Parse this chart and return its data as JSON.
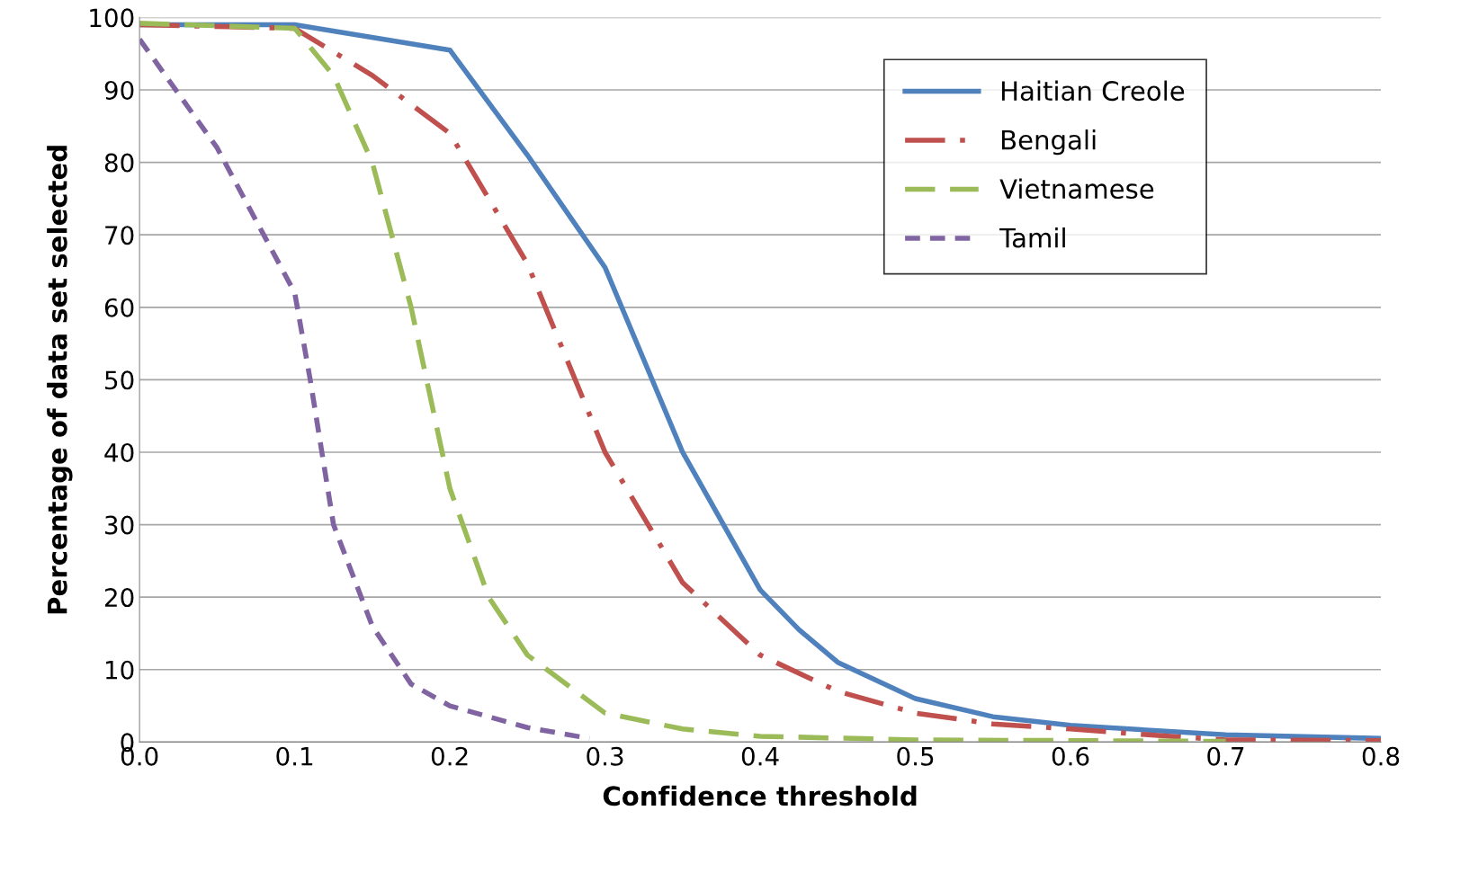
{
  "chart_data": {
    "type": "line",
    "xlabel": "Confidence threshold",
    "ylabel": "Percentage of data set selected",
    "xlim": [
      0,
      0.8
    ],
    "ylim": [
      0,
      100
    ],
    "xticks": [
      {
        "value": 0,
        "label": "0.0"
      },
      {
        "value": 0.1,
        "label": "0.1"
      },
      {
        "value": 0.2,
        "label": "0.2"
      },
      {
        "value": 0.3,
        "label": "0.3"
      },
      {
        "value": 0.4,
        "label": "0.4"
      },
      {
        "value": 0.5,
        "label": "0.5"
      },
      {
        "value": 0.6,
        "label": "0.6"
      },
      {
        "value": 0.7,
        "label": "0.7"
      },
      {
        "value": 0.8,
        "label": "0.8"
      }
    ],
    "yticks": [
      0,
      10,
      20,
      30,
      40,
      50,
      60,
      70,
      80,
      90,
      100
    ],
    "grid": "y",
    "legend": "top right",
    "marker": "none",
    "series": [
      {
        "name": "Haitian Creole",
        "color": "#4f81bd",
        "line_style": "solid",
        "x": [
          0,
          0.1,
          0.2,
          0.25,
          0.3,
          0.35,
          0.4,
          0.425,
          0.45,
          0.5,
          0.55,
          0.6,
          0.7,
          0.8
        ],
        "values": [
          99,
          99,
          95.5,
          81,
          65.5,
          40,
          21,
          15.5,
          11,
          6,
          3.5,
          2.3,
          1,
          0.5
        ]
      },
      {
        "name": "Bengali",
        "color": "#c0504d",
        "line_style": "dashdot",
        "x": [
          0,
          0.1,
          0.15,
          0.2,
          0.25,
          0.3,
          0.35,
          0.4,
          0.45,
          0.5,
          0.55,
          0.6,
          0.65,
          0.7,
          0.8
        ],
        "values": [
          99,
          98.5,
          92,
          84,
          66,
          40,
          22,
          12,
          7,
          4,
          2.5,
          1.8,
          1,
          0.3,
          0.2
        ]
      },
      {
        "name": "Vietnamese",
        "color": "#9bbb59",
        "line_style": "dashed",
        "x": [
          0,
          0.1,
          0.125,
          0.15,
          0.175,
          0.2,
          0.225,
          0.25,
          0.3,
          0.35,
          0.4,
          0.5,
          0.6,
          0.7
        ],
        "values": [
          99.2,
          98.5,
          92,
          80,
          60,
          35,
          20,
          12,
          4,
          1.8,
          0.8,
          0.3,
          0.2,
          0.1
        ]
      },
      {
        "name": "Tamil",
        "color": "#8064a2",
        "line_style": "shortdash",
        "x": [
          0,
          0.05,
          0.1,
          0.11,
          0.125,
          0.15,
          0.175,
          0.2,
          0.25,
          0.29
        ],
        "values": [
          97,
          82,
          62,
          50,
          30,
          16,
          8,
          5,
          2,
          0.5
        ]
      }
    ]
  }
}
